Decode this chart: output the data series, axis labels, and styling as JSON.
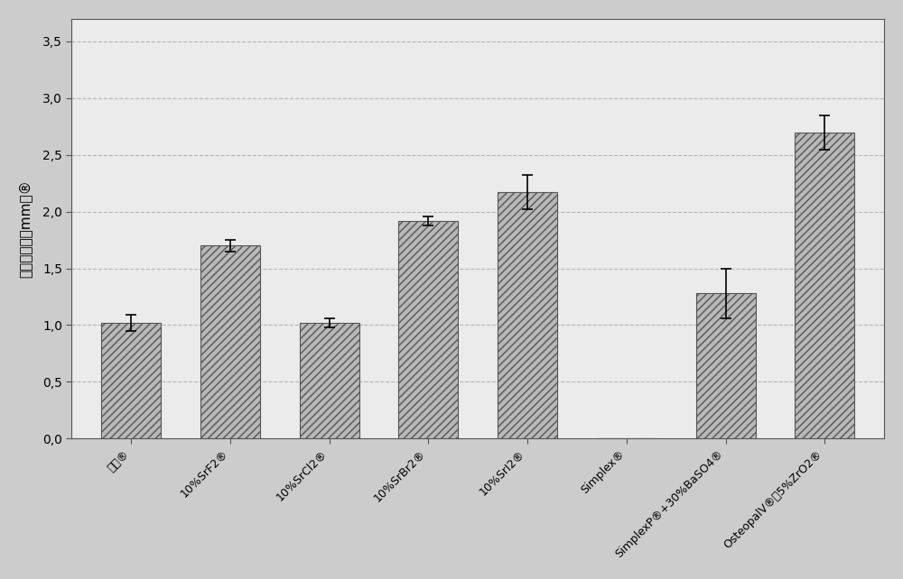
{
  "categories_display": [
    "对照®",
    "10%SrF2®",
    "10%SrCl2®",
    "10%SrBr2®",
    "10%SrI2®",
    "Simplex®",
    "SimplexP®+30%BaSO4®",
    "OsteopalV®含5%ZrO2®"
  ],
  "values": [
    1.02,
    1.7,
    1.02,
    1.92,
    2.17,
    0.0,
    1.28,
    2.7
  ],
  "errors": [
    0.07,
    0.05,
    0.04,
    0.04,
    0.15,
    0.0,
    0.22,
    0.15
  ],
  "ylabel": "射线不透性（mm）®",
  "yticks": [
    0.0,
    0.5,
    1.0,
    1.5,
    2.0,
    2.5,
    3.0,
    3.5
  ],
  "ylim": [
    0,
    3.7
  ],
  "bar_color": "#b8b8b8",
  "bar_edge_color": "#555555",
  "hatch": "////",
  "background_color": "#ebebeb",
  "figure_background": "#cccccc",
  "error_cap_size": 4,
  "bar_width": 0.6
}
